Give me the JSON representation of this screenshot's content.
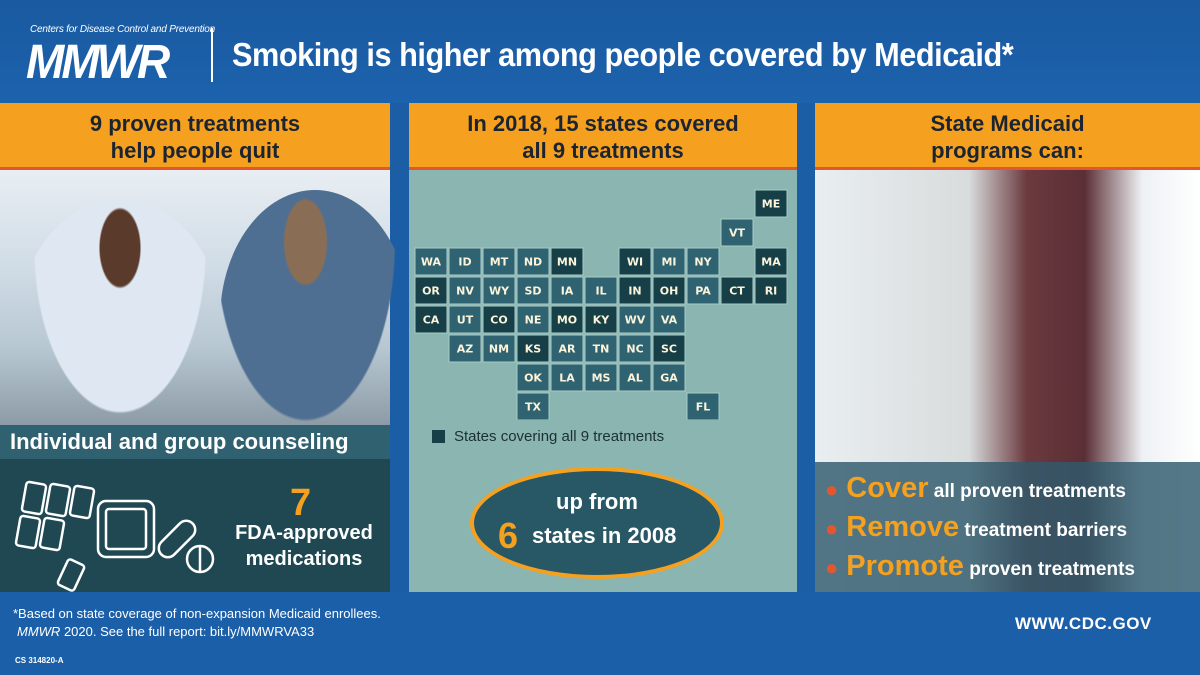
{
  "header": {
    "org": "Centers for Disease Control and Prevention",
    "logo": "MMWR",
    "title": "Smoking is higher among people covered by Medicaid*"
  },
  "left": {
    "heading_line1": "9 proven treatments",
    "heading_line2": "help people quit",
    "counseling": "Individual and group counseling",
    "med_count": "7",
    "med_line1": "FDA-approved",
    "med_line2": "medications",
    "icons": [
      "nicotine-patch-icon",
      "nicotine-gum-icon",
      "pill-icon",
      "tablet-icon"
    ]
  },
  "middle": {
    "heading_line1": "In 2018, 15 states covered",
    "heading_line2": "all 9 treatments",
    "legend": "States covering all 9 treatments",
    "up_from": "up from",
    "prior_count": "6",
    "prior_text": "states in 2008",
    "colors": {
      "covered": "#173f48",
      "not_covered": "#2f6371",
      "background": "#8ab5b1"
    },
    "states": [
      {
        "abbr": "WA",
        "covered": false
      },
      {
        "abbr": "OR",
        "covered": true
      },
      {
        "abbr": "CA",
        "covered": true
      },
      {
        "abbr": "ID",
        "covered": false
      },
      {
        "abbr": "NV",
        "covered": false
      },
      {
        "abbr": "AZ",
        "covered": false
      },
      {
        "abbr": "MT",
        "covered": false
      },
      {
        "abbr": "WY",
        "covered": false
      },
      {
        "abbr": "UT",
        "covered": false
      },
      {
        "abbr": "CO",
        "covered": true
      },
      {
        "abbr": "NM",
        "covered": false
      },
      {
        "abbr": "ND",
        "covered": false
      },
      {
        "abbr": "SD",
        "covered": false
      },
      {
        "abbr": "NE",
        "covered": false
      },
      {
        "abbr": "KS",
        "covered": true
      },
      {
        "abbr": "OK",
        "covered": false
      },
      {
        "abbr": "TX",
        "covered": false
      },
      {
        "abbr": "MN",
        "covered": true
      },
      {
        "abbr": "IA",
        "covered": false
      },
      {
        "abbr": "MO",
        "covered": true
      },
      {
        "abbr": "AR",
        "covered": false
      },
      {
        "abbr": "LA",
        "covered": false
      },
      {
        "abbr": "WI",
        "covered": true
      },
      {
        "abbr": "IL",
        "covered": false
      },
      {
        "abbr": "MS",
        "covered": false
      },
      {
        "abbr": "MI",
        "covered": false
      },
      {
        "abbr": "IN",
        "covered": true
      },
      {
        "abbr": "KY",
        "covered": true
      },
      {
        "abbr": "TN",
        "covered": false
      },
      {
        "abbr": "AL",
        "covered": false
      },
      {
        "abbr": "OH",
        "covered": true
      },
      {
        "abbr": "WV",
        "covered": false
      },
      {
        "abbr": "GA",
        "covered": false
      },
      {
        "abbr": "FL",
        "covered": false
      },
      {
        "abbr": "PA",
        "covered": false
      },
      {
        "abbr": "VA",
        "covered": false
      },
      {
        "abbr": "NC",
        "covered": false
      },
      {
        "abbr": "SC",
        "covered": true
      },
      {
        "abbr": "NY",
        "covered": false
      },
      {
        "abbr": "VT",
        "covered": false
      },
      {
        "abbr": "MA",
        "covered": true
      },
      {
        "abbr": "ME",
        "covered": true
      },
      {
        "abbr": "RI",
        "covered": true
      },
      {
        "abbr": "CT",
        "covered": true
      }
    ]
  },
  "right": {
    "heading_line1": "State Medicaid",
    "heading_line2": "programs can:",
    "actions": [
      {
        "keyword": "Cover",
        "rest": "all proven treatments"
      },
      {
        "keyword": "Remove",
        "rest": "treatment barriers"
      },
      {
        "keyword": "Promote",
        "rest": "proven treatments"
      }
    ]
  },
  "footer": {
    "note_line1": "*Based on state coverage of non-expansion Medicaid enrollees.",
    "note_journal": "MMWR",
    "note_line2": " 2020. See the full report: bit.ly/MMWRVA33",
    "code": "CS 314820-A",
    "website": "WWW.CDC.GOV"
  }
}
